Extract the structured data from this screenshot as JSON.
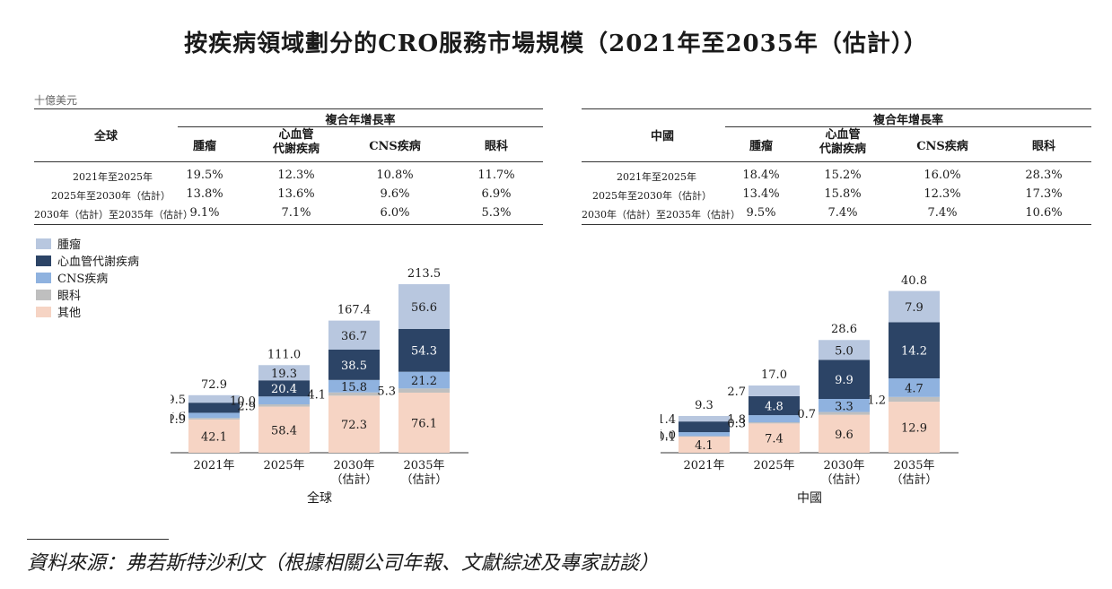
{
  "title": "按疾病領域劃分的CRO服務市場規模（2021年至2035年（估計））",
  "unit": "十億美元",
  "tables": [
    {
      "region": "全球",
      "group_header": "複合年增長率",
      "columns": [
        "腫瘤",
        "心血管\n代謝疾病",
        "CNS疾病",
        "眼科"
      ],
      "rows": [
        {
          "label": "2021年至2025年",
          "values": [
            "19.5%",
            "12.3%",
            "10.8%",
            "11.7%"
          ]
        },
        {
          "label": "2025年至2030年（估計）",
          "values": [
            "13.8%",
            "13.6%",
            "9.6%",
            "6.9%"
          ]
        },
        {
          "label": "2030年（估計）至2035年（估計）",
          "values": [
            "9.1%",
            "7.1%",
            "6.0%",
            "5.3%"
          ]
        }
      ]
    },
    {
      "region": "中國",
      "group_header": "複合年增長率",
      "columns": [
        "腫瘤",
        "心血管\n代謝疾病",
        "CNS疾病",
        "眼科"
      ],
      "rows": [
        {
          "label": "2021年至2025年",
          "values": [
            "18.4%",
            "15.2%",
            "16.0%",
            "28.3%"
          ]
        },
        {
          "label": "2025年至2030年（估計）",
          "values": [
            "13.4%",
            "15.8%",
            "12.3%",
            "17.3%"
          ]
        },
        {
          "label": "2030年（估計）至2035年（估計）",
          "values": [
            "9.5%",
            "7.4%",
            "7.4%",
            "10.6%"
          ]
        }
      ]
    }
  ],
  "legend": [
    {
      "name": "腫瘤",
      "color": "#b8c7df"
    },
    {
      "name": "心血管代謝疾病",
      "color": "#2c4466"
    },
    {
      "name": "CNS疾病",
      "color": "#8fb2df"
    },
    {
      "name": "眼科",
      "color": "#bfbfbf"
    },
    {
      "name": "其他",
      "color": "#f6d4c4"
    }
  ],
  "chart_data": [
    {
      "type": "bar",
      "stacked": true,
      "xlabel": "全球",
      "categories": [
        "2021年",
        "2025年",
        "2030年\n（估計）",
        "2035年\n（估計）"
      ],
      "series": [
        {
          "name": "其他",
          "values": [
            42.1,
            58.4,
            72.3,
            76.1
          ]
        },
        {
          "name": "眼科",
          "values": [
            1.9,
            2.9,
            4.1,
            5.3
          ]
        },
        {
          "name": "CNS疾病",
          "values": [
            6.6,
            10.0,
            15.8,
            21.2
          ]
        },
        {
          "name": "心血管代謝疾病",
          "values": [
            12.8,
            20.4,
            38.5,
            54.3
          ]
        },
        {
          "name": "腫瘤",
          "values": [
            9.5,
            19.3,
            36.7,
            56.6
          ]
        }
      ],
      "totals": [
        72.9,
        111.0,
        167.4,
        213.5
      ],
      "total_labels": [
        "72.9",
        "111.0",
        "167.4",
        "213.5"
      ],
      "value_labels": [
        [
          "42.1",
          "58.4",
          "72.3",
          "76.1"
        ],
        [
          "1.9",
          "2.9",
          "4.1",
          "5.3"
        ],
        [
          "6.6",
          "10.0",
          "15.8",
          "21.2"
        ],
        [
          "12.8",
          "20.4",
          "38.5",
          "54.3"
        ],
        [
          "9.5",
          "19.3",
          "36.7",
          "56.6"
        ]
      ],
      "ylim": [
        0,
        213.5
      ]
    },
    {
      "type": "bar",
      "stacked": true,
      "xlabel": "中國",
      "categories": [
        "2021年",
        "2025年",
        "2030年\n（估計）",
        "2035年\n（估計）"
      ],
      "series": [
        {
          "name": "其他",
          "values": [
            4.1,
            7.4,
            9.6,
            12.9
          ]
        },
        {
          "name": "眼科",
          "values": [
            0.1,
            0.3,
            0.7,
            1.2
          ]
        },
        {
          "name": "CNS疾病",
          "values": [
            1.0,
            1.8,
            3.3,
            4.7
          ]
        },
        {
          "name": "心血管代謝疾病",
          "values": [
            2.7,
            4.8,
            9.9,
            14.2
          ]
        },
        {
          "name": "腫瘤",
          "values": [
            1.4,
            2.7,
            5.0,
            7.9
          ]
        }
      ],
      "totals": [
        9.3,
        17.0,
        28.6,
        40.8
      ],
      "total_labels": [
        "9.3",
        "17.0",
        "28.6",
        "40.8"
      ],
      "value_labels": [
        [
          "4.1",
          "7.4",
          "9.6",
          "12.9"
        ],
        [
          "0.1",
          "0.3",
          "0.7",
          "1.2"
        ],
        [
          "1.0",
          "1.8",
          "3.3",
          "4.7"
        ],
        [
          "2.7",
          "4.8",
          "9.9",
          "14.2"
        ],
        [
          "1.4",
          "2.7",
          "5.0",
          "7.9"
        ]
      ],
      "ylim": [
        0,
        40.8
      ]
    }
  ],
  "source": "資料來源：弗若斯特沙利文（根據相關公司年報、文獻綜述及專家訪談）"
}
